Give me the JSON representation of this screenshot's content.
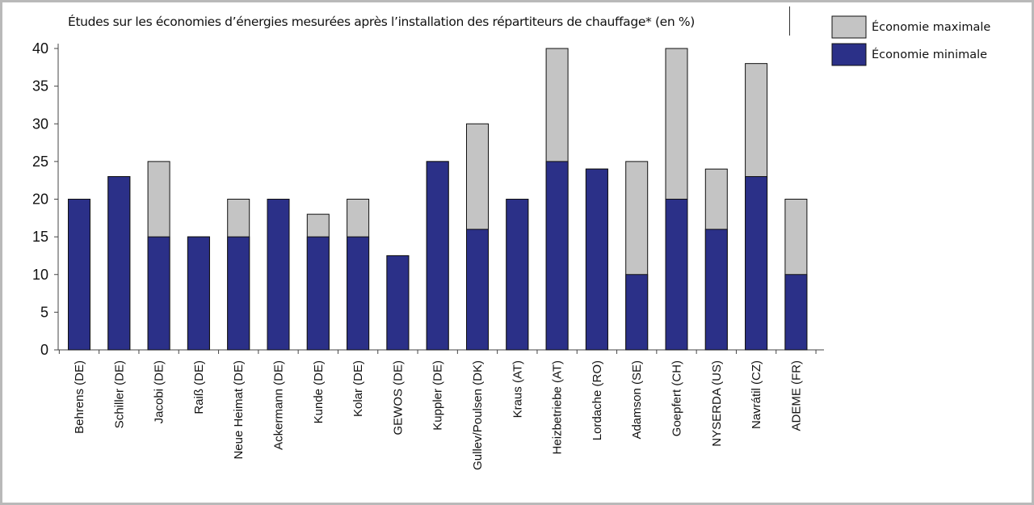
{
  "chart_data": {
    "type": "bar",
    "stacked": false,
    "overlay": true,
    "title": "Études sur les économies d’énergies mesurées après l’installation des répartiteurs de chauffage* (en %)",
    "xlabel": "",
    "ylabel": "",
    "ylim": [
      0,
      40
    ],
    "yticks": [
      0,
      5,
      10,
      15,
      20,
      25,
      30,
      35,
      40
    ],
    "grid": false,
    "legend_position": "top-right",
    "categories": [
      "Behrens (DE)",
      "Schiller (DE)",
      "Jacobi (DE)",
      "Raiß (DE)",
      "Neue Heimat (DE)",
      "Ackermann (DE)",
      "Kunde (DE)",
      "Kolar (DE)",
      "GEWOS (DE)",
      "Kuppler (DE)",
      "Gullev/Poulsen (DK)",
      "Kraus (AT)",
      "Heizbetriebe (AT)",
      "Lordache (RO)",
      "Adamson (SE)",
      "Goepfert (CH)",
      "NYSERDA  (US)",
      "Navrátil (CZ)",
      "ADEME  (FR)"
    ],
    "series": [
      {
        "name": "Économie maximale",
        "color": "#c4c4c4",
        "values": [
          20,
          23,
          25,
          15,
          20,
          20,
          18,
          20,
          12.5,
          25,
          30,
          20,
          40,
          24,
          25,
          40,
          24,
          38,
          20
        ]
      },
      {
        "name": "Économie minimale",
        "color": "#2b3088",
        "values": [
          20,
          23,
          15,
          15,
          15,
          20,
          15,
          15,
          12.5,
          25,
          16,
          20,
          25,
          24,
          10,
          20,
          16,
          23,
          10
        ]
      }
    ]
  }
}
